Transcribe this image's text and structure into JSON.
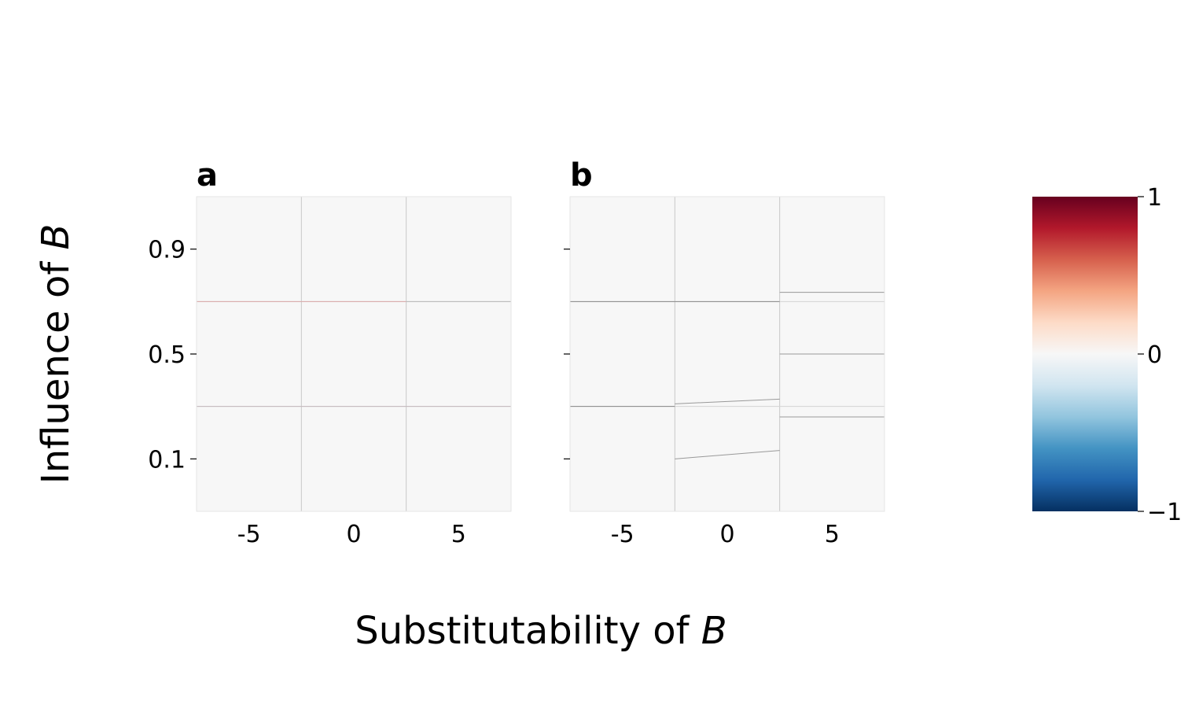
{
  "figure": {
    "xlabel_prefix": "Substitutability of ",
    "xlabel_var": "B",
    "ylabel_prefix": "Influence of ",
    "ylabel_var": "B"
  },
  "chart_data": [
    {
      "type": "heatmap",
      "title": "a",
      "xlim": [
        -7.5,
        7.5
      ],
      "ylim": [
        -0.1,
        1.1
      ],
      "x_ticks": [
        -5,
        0,
        5
      ],
      "x_tick_labels": [
        "-5",
        "0",
        "5"
      ],
      "y_ticks": [
        0.1,
        0.5,
        0.9
      ],
      "y_tick_labels": [
        "0.1",
        "0.5",
        "0.9"
      ],
      "cell_x_edges": [
        -7.5,
        -2.5,
        2.5,
        7.5
      ],
      "cell_y_edges": [
        -0.1,
        0.3,
        0.7,
        1.1
      ],
      "cells": [
        [
          0,
          0,
          0
        ],
        [
          0,
          0,
          0
        ],
        [
          0,
          0,
          0
        ]
      ],
      "contours": [
        {
          "x": [
            -7.5,
            2.5
          ],
          "y": [
            0.7,
            0.7
          ],
          "color": "#d9a7a7"
        },
        {
          "x": [
            2.5,
            7.5
          ],
          "y": [
            0.7,
            0.7
          ],
          "color": "#b8b8b8"
        },
        {
          "x": [
            -7.5,
            7.5
          ],
          "y": [
            0.3,
            0.3
          ],
          "color": "#c4b8bd"
        },
        {
          "x": [
            -2.5,
            2.5
          ],
          "y": [
            -0.1,
            -0.1
          ],
          "color": "#e2b9b9"
        }
      ]
    },
    {
      "type": "heatmap",
      "title": "b",
      "xlim": [
        -7.5,
        7.5
      ],
      "ylim": [
        -0.1,
        1.1
      ],
      "x_ticks": [
        -5,
        0,
        5
      ],
      "x_tick_labels": [
        "-5",
        "0",
        "5"
      ],
      "y_ticks": [
        0.1,
        0.5,
        0.9
      ],
      "y_tick_labels": [
        "",
        "",
        ""
      ],
      "cell_x_edges": [
        -7.5,
        -2.5,
        2.5,
        7.5
      ],
      "cell_y_edges": [
        -0.1,
        0.3,
        0.7,
        1.1
      ],
      "cells": [
        [
          0,
          0,
          0
        ],
        [
          0,
          0,
          0
        ],
        [
          0,
          0,
          0
        ]
      ],
      "contours": [
        {
          "x": [
            -7.5,
            2.5
          ],
          "y": [
            0.7,
            0.7
          ],
          "color": "#888888"
        },
        {
          "x": [
            2.5,
            7.5
          ],
          "y": [
            0.735,
            0.735
          ],
          "color": "#999999"
        },
        {
          "x": [
            2.5,
            7.5
          ],
          "y": [
            0.5,
            0.5
          ],
          "color": "#999999"
        },
        {
          "x": [
            -7.5,
            -2.5
          ],
          "y": [
            0.3,
            0.3
          ],
          "color": "#888888"
        },
        {
          "x": [
            -2.5,
            2.5
          ],
          "y": [
            0.31,
            0.328
          ],
          "color": "#999999"
        },
        {
          "x": [
            2.5,
            7.5
          ],
          "y": [
            0.26,
            0.26
          ],
          "color": "#999999"
        },
        {
          "x": [
            -2.5,
            2.5
          ],
          "y": [
            0.1,
            0.132
          ],
          "color": "#999999"
        },
        {
          "x": [
            -7.5,
            -2.5
          ],
          "y": [
            -0.1,
            -0.1
          ],
          "color": "#777777"
        }
      ]
    }
  ],
  "colorbar": {
    "vmin": -1,
    "vmax": 1,
    "ticks": [
      1,
      0,
      -1
    ],
    "tick_labels": [
      "1",
      "0",
      "−1"
    ],
    "colormap": "RdBu_r",
    "stops": [
      "#67001f",
      "#b2182b",
      "#d6604d",
      "#f4a582",
      "#fddbc7",
      "#f7f7f7",
      "#d1e5f0",
      "#92c5de",
      "#4393c3",
      "#2166ac",
      "#053061"
    ]
  }
}
